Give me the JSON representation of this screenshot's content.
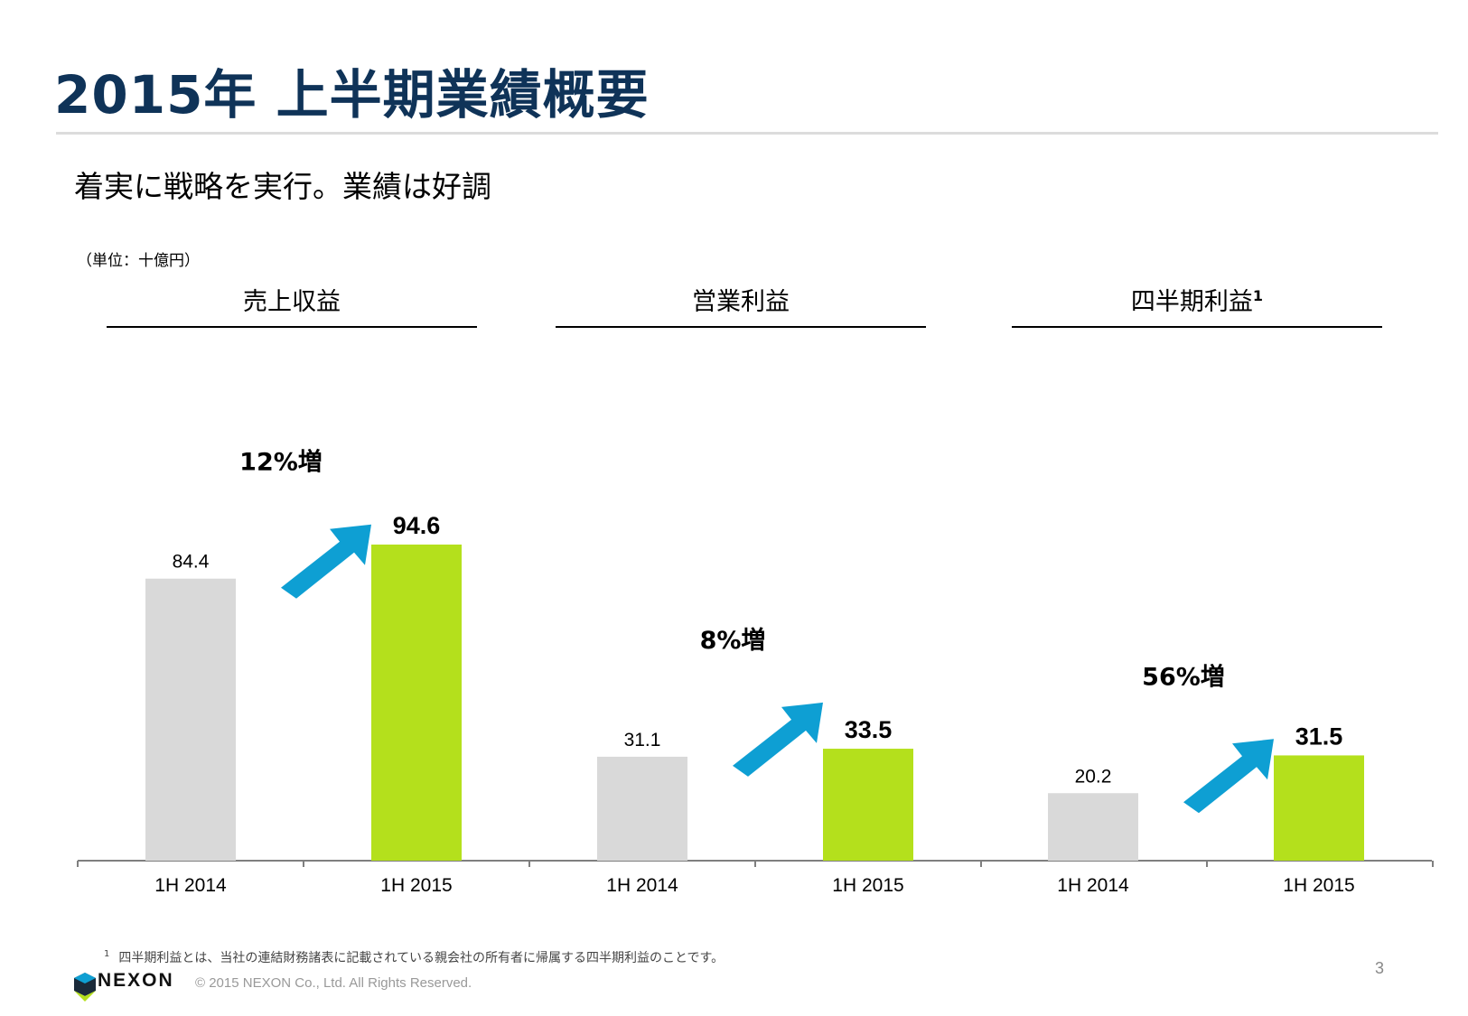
{
  "slide": {
    "title": "2015年 上半期業績概要",
    "subtitle": "着実に戦略を実行。業績は好調",
    "unit_note": "（単位：十億円）",
    "footnote_marker": "1",
    "footnote": "四半期利益とは、当社の連結財務諸表に記載されている親会社の所有者に帰属する四半期利益のことです。",
    "logo_text": "NEXON",
    "copyright": "© 2015 NEXON Co., Ltd. All Rights Reserved.",
    "page_number": "3"
  },
  "colors": {
    "title": "#0f3358",
    "bar_2014": "#d9d9d9",
    "bar_2015": "#b4e01c",
    "arrow": "#0e9fd3"
  },
  "chart_data": [
    {
      "type": "bar",
      "title": "売上収益",
      "title_sup": "",
      "categories": [
        "1H 2014",
        "1H 2015"
      ],
      "values": [
        84.4,
        94.6
      ],
      "value_labels": [
        "84.4",
        "94.6"
      ],
      "growth_label": "12%増",
      "ylim": [
        0,
        100
      ]
    },
    {
      "type": "bar",
      "title": "営業利益",
      "title_sup": "",
      "categories": [
        "1H 2014",
        "1H 2015"
      ],
      "values": [
        31.1,
        33.5
      ],
      "value_labels": [
        "31.1",
        "33.5"
      ],
      "growth_label": "8%増",
      "ylim": [
        0,
        100
      ]
    },
    {
      "type": "bar",
      "title": "四半期利益",
      "title_sup": "1",
      "categories": [
        "1H 2014",
        "1H 2015"
      ],
      "values": [
        20.2,
        31.5
      ],
      "value_labels": [
        "20.2",
        "31.5"
      ],
      "growth_label": "56%増",
      "ylim": [
        0,
        100
      ]
    }
  ]
}
